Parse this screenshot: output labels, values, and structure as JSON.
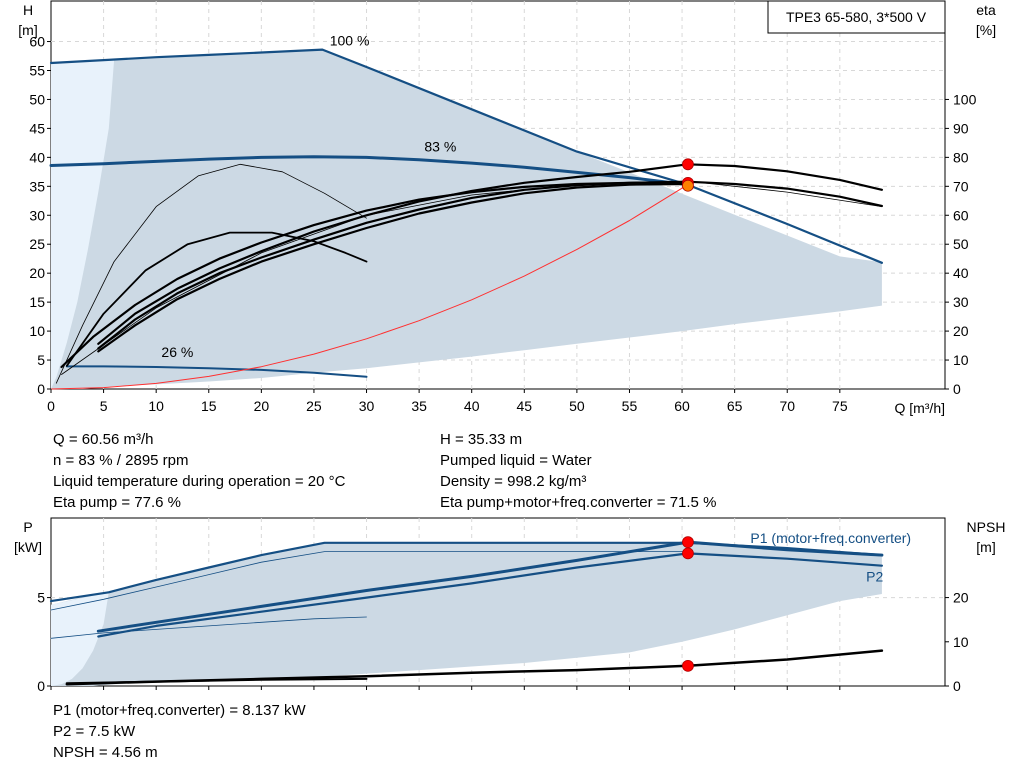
{
  "chart_data": [
    {
      "type": "line",
      "title": "TPE3 65-580, 3*500 V",
      "xlabel": "Q [m³/h]",
      "ylabel_left": [
        "H",
        "[m]"
      ],
      "ylabel_right": [
        "eta",
        "[%]"
      ],
      "xlim": [
        0,
        85
      ],
      "ylim": [
        0,
        67
      ],
      "xticks": [
        0,
        5,
        10,
        15,
        20,
        25,
        30,
        35,
        40,
        45,
        50,
        55,
        60,
        65,
        70,
        75
      ],
      "yticks_left": [
        0,
        5,
        10,
        15,
        20,
        25,
        30,
        35,
        40,
        45,
        50,
        55,
        60
      ],
      "yticks_right": [
        0,
        10,
        20,
        30,
        40,
        50,
        60,
        70,
        80,
        90,
        100
      ],
      "eta_scale": 0.5,
      "speed_labels": [
        {
          "text": "100 %",
          "x": 26.5,
          "y": 59.3
        },
        {
          "text": "83 %",
          "x": 35.5,
          "y": 41.0
        },
        {
          "text": "26 %",
          "x": 10.5,
          "y": 5.5
        }
      ],
      "series": [
        {
          "role": "envelope",
          "color": "#ccd9e4",
          "x": [
            0,
            5,
            10,
            15,
            20,
            25,
            26,
            30,
            35,
            40,
            45,
            50,
            55,
            60,
            65,
            70,
            75,
            79,
            79,
            75,
            70,
            65,
            60,
            55,
            50,
            45,
            40,
            35,
            30,
            25,
            20,
            15,
            10,
            6,
            5,
            4,
            3,
            2,
            1,
            0
          ],
          "y": [
            56.3,
            56.8,
            57.2,
            57.6,
            58.0,
            58.4,
            58.5,
            55.6,
            51.9,
            48.3,
            44.7,
            41.0,
            37.4,
            33.7,
            30.1,
            26.5,
            22.9,
            21.9,
            14.4,
            13.4,
            12.3,
            11.2,
            10.0,
            8.9,
            7.8,
            6.7,
            5.6,
            4.6,
            3.6,
            2.8,
            1.9,
            1.3,
            0.8,
            0.5,
            0.3,
            0.1,
            0.0,
            0.0,
            0.0,
            0.0
          ]
        },
        {
          "role": "envelope-edge",
          "color": "#e8f2fb",
          "x": [
            0,
            6,
            5.5,
            4.5,
            3.5,
            2.5,
            1.5,
            0.5,
            0
          ],
          "y": [
            56.3,
            56.8,
            45,
            34,
            24,
            15,
            8,
            2,
            0
          ]
        },
        {
          "role": "curve-100",
          "color": "#154f84",
          "width": 2.2,
          "x": [
            0,
            5,
            10,
            15,
            20,
            25.8,
            30,
            40,
            50,
            60.5,
            70,
            79
          ],
          "y": [
            56.3,
            56.8,
            57.3,
            57.7,
            58.1,
            58.6,
            55.6,
            48.3,
            41.0,
            35.3,
            28.5,
            21.8
          ]
        },
        {
          "role": "curve-83",
          "color": "#154f84",
          "width": 3,
          "x": [
            0,
            5,
            10,
            15,
            20,
            25,
            30,
            35,
            40,
            45,
            50,
            55,
            60.56
          ],
          "y": [
            38.6,
            38.9,
            39.3,
            39.7,
            40.0,
            40.1,
            40.0,
            39.6,
            39.0,
            38.3,
            37.4,
            36.5,
            35.3
          ]
        },
        {
          "role": "curve-26",
          "color": "#154f84",
          "width": 2,
          "x": [
            1.5,
            5,
            10,
            15,
            20,
            25,
            30
          ],
          "y": [
            3.9,
            3.9,
            3.8,
            3.6,
            3.3,
            2.8,
            2.1
          ]
        },
        {
          "role": "system-curve",
          "color": "#ff3030",
          "width": 1,
          "x": [
            0,
            5,
            10,
            15,
            20,
            25,
            30,
            35,
            40,
            45,
            50,
            55,
            60.56
          ],
          "y": [
            0,
            0.24,
            0.96,
            2.17,
            3.85,
            6.02,
            8.67,
            11.8,
            15.4,
            19.5,
            24.1,
            29.1,
            35.3
          ]
        },
        {
          "role": "efficiency-thin-100",
          "color": "#000000",
          "width": 0.8,
          "x": [
            0.5,
            3,
            6,
            10,
            14,
            18,
            22,
            26,
            30
          ],
          "y": [
            1.0,
            11.0,
            22.0,
            31.5,
            36.8,
            38.8,
            37.5,
            33.8,
            29.5
          ]
        },
        {
          "role": "efficiency-26",
          "color": "#000000",
          "width": 1.8,
          "x": [
            1.5,
            5,
            9,
            13,
            17,
            21,
            25,
            28,
            30
          ],
          "y": [
            4.0,
            13.0,
            20.5,
            25.0,
            27.0,
            27.0,
            25.5,
            23.5,
            22.0
          ]
        },
        {
          "role": "efficiency-thin-83",
          "color": "#000000",
          "width": 0.8,
          "x": [
            1,
            10,
            20,
            30,
            40,
            50,
            60.5,
            70,
            79
          ],
          "y": [
            2.5,
            14.0,
            23.5,
            30.0,
            33.5,
            35.3,
            35.9,
            34.0,
            31.5
          ]
        },
        {
          "role": "efficiency-a",
          "color": "#000000",
          "width": 2.2,
          "x": [
            4.5,
            8,
            12,
            16,
            20,
            25,
            30,
            35,
            40,
            45,
            50,
            55,
            60.5,
            65,
            70,
            75,
            79
          ],
          "y": [
            7.8,
            13.0,
            17.3,
            20.8,
            23.8,
            27.2,
            30.0,
            32.4,
            34.2,
            35.6,
            36.6,
            37.5,
            38.8,
            38.5,
            37.6,
            36.1,
            34.4
          ]
        },
        {
          "role": "efficiency-b",
          "color": "#000000",
          "width": 2.2,
          "x": [
            4.5,
            8,
            12,
            16,
            20,
            25,
            30,
            35,
            40,
            45,
            50,
            55,
            60.5,
            65,
            70,
            75,
            79
          ],
          "y": [
            7.0,
            12.0,
            16.5,
            20.0,
            22.7,
            25.8,
            28.7,
            31.0,
            33.0,
            34.4,
            35.2,
            35.6,
            35.8,
            35.4,
            34.6,
            33.2,
            31.6
          ]
        },
        {
          "role": "efficiency-c",
          "color": "#000000",
          "width": 2.2,
          "x": [
            4.5,
            8,
            12,
            16,
            20,
            25,
            30,
            35,
            40,
            45,
            50,
            55,
            60.5
          ],
          "y": [
            6.5,
            11.0,
            15.5,
            19.0,
            22.0,
            25.0,
            27.8,
            30.3,
            32.2,
            33.8,
            34.8,
            35.3,
            35.4
          ]
        },
        {
          "role": "efficiency-d",
          "color": "#000000",
          "width": 2.2,
          "x": [
            1,
            4,
            8,
            12,
            16,
            20,
            25,
            30,
            35,
            40,
            45,
            50,
            55,
            60.5
          ],
          "y": [
            3.8,
            9.0,
            14.5,
            19.0,
            22.5,
            25.3,
            28.3,
            30.8,
            32.7,
            34.0,
            34.9,
            35.4,
            35.6,
            35.7
          ]
        }
      ],
      "markers": [
        {
          "x": 60.56,
          "y": 38.8,
          "color": "#ff0000"
        },
        {
          "x": 60.56,
          "y": 35.6,
          "color": "#ff0000"
        },
        {
          "x": 60.56,
          "y": 35.1,
          "color": "#ff8000"
        }
      ]
    },
    {
      "type": "line",
      "ylabel_left": [
        "P",
        "[kW]"
      ],
      "ylabel_right": [
        "NPSH",
        "[m]"
      ],
      "xlim": [
        0,
        85
      ],
      "ylim": [
        0,
        9.5
      ],
      "yticks_left": [
        0,
        5
      ],
      "yticks_right": [
        0,
        10,
        20
      ],
      "npsh_scale": 0.25,
      "legend": [
        {
          "text": "P1 (motor+freq.converter)",
          "x": 66.5,
          "y": 8.1,
          "color": "#154f84"
        },
        {
          "text": "P2",
          "x": 77.5,
          "y": 5.9,
          "color": "#154f84"
        }
      ],
      "series": [
        {
          "role": "envelope",
          "color": "#ccd9e4",
          "x": [
            0,
            5,
            10,
            15,
            20,
            26,
            30,
            40,
            50,
            60.5,
            70,
            79,
            79,
            75,
            70,
            65,
            60,
            55,
            50,
            45,
            40,
            35,
            30,
            25,
            20,
            15,
            10,
            6,
            5,
            4,
            3,
            2,
            0
          ],
          "y": [
            4.6,
            5.3,
            6.0,
            6.7,
            7.4,
            8.1,
            8.1,
            8.1,
            8.1,
            8.1,
            7.7,
            7.3,
            5.2,
            4.8,
            4.0,
            3.2,
            2.5,
            1.9,
            1.6,
            1.3,
            1.1,
            0.9,
            0.7,
            0.5,
            0.4,
            0.3,
            0.2,
            0.1,
            0.05,
            0.0,
            0.0,
            0.0,
            0.0
          ]
        },
        {
          "role": "envelope-edge",
          "color": "#e8f2fb",
          "x": [
            0,
            5.5,
            5,
            4,
            3,
            2,
            1,
            0
          ],
          "y": [
            4.6,
            5.3,
            3.5,
            2.0,
            1.0,
            0.4,
            0.1,
            0
          ]
        },
        {
          "role": "p1-100",
          "color": "#154f84",
          "width": 2.2,
          "x": [
            0,
            5.5,
            10,
            15,
            20,
            26,
            40,
            60.5,
            70,
            79
          ],
          "y": [
            4.8,
            5.3,
            6.0,
            6.7,
            7.4,
            8.1,
            8.1,
            8.1,
            7.8,
            7.4
          ]
        },
        {
          "role": "p2-100-thin",
          "color": "#154f84",
          "width": 0.8,
          "x": [
            0,
            5,
            10,
            15,
            20,
            26,
            40,
            60.5
          ],
          "y": [
            4.3,
            4.9,
            5.6,
            6.3,
            7.0,
            7.6,
            7.6,
            7.6
          ]
        },
        {
          "role": "p1-83",
          "color": "#154f84",
          "width": 3,
          "x": [
            4.5,
            10,
            20,
            30,
            40,
            50,
            60.56,
            70,
            79
          ],
          "y": [
            3.1,
            3.6,
            4.5,
            5.4,
            6.2,
            7.1,
            8.137,
            7.7,
            7.4
          ]
        },
        {
          "role": "p2-83",
          "color": "#154f84",
          "width": 2.2,
          "x": [
            4.5,
            10,
            20,
            30,
            40,
            50,
            60.56,
            70,
            79
          ],
          "y": [
            2.8,
            3.4,
            4.2,
            5.0,
            5.8,
            6.7,
            7.5,
            7.2,
            6.8
          ]
        },
        {
          "role": "p1-low-thin",
          "color": "#154f84",
          "width": 0.8,
          "x": [
            0,
            5,
            10,
            15,
            20,
            25,
            30
          ],
          "y": [
            2.7,
            3.0,
            3.2,
            3.4,
            3.6,
            3.8,
            3.9
          ]
        },
        {
          "role": "p-26",
          "color": "#000000",
          "width": 2,
          "x": [
            1.5,
            10,
            20,
            30
          ],
          "y": [
            0.15,
            0.25,
            0.35,
            0.4
          ]
        },
        {
          "role": "npsh",
          "color": "#000000",
          "width": 2.5,
          "x": [
            1.5,
            10,
            20,
            30,
            40,
            50,
            60.56,
            70,
            79
          ],
          "y": [
            0.1,
            0.25,
            0.4,
            0.55,
            0.75,
            0.9,
            1.14,
            1.5,
            2.0
          ]
        }
      ],
      "markers": [
        {
          "x": 60.56,
          "y": 8.137,
          "color": "#ff0000"
        },
        {
          "x": 60.56,
          "y": 7.5,
          "color": "#ff0000"
        },
        {
          "x": 60.56,
          "y": 1.14,
          "color": "#ff0000"
        }
      ]
    }
  ],
  "info_top_left": [
    "Q = 60.56 m³/h",
    "n = 83 % / 2895 rpm",
    "Liquid temperature during operation = 20 °C",
    "Eta pump = 77.6 %"
  ],
  "info_top_right": [
    "H = 35.33 m",
    "Pumped liquid = Water",
    "Density = 998.2 kg/m³",
    "Eta pump+motor+freq.converter = 71.5 %"
  ],
  "info_bottom": [
    "P1 (motor+freq.converter) = 8.137 kW",
    "P2 = 7.5 kW",
    "NPSH = 4.56 m"
  ]
}
